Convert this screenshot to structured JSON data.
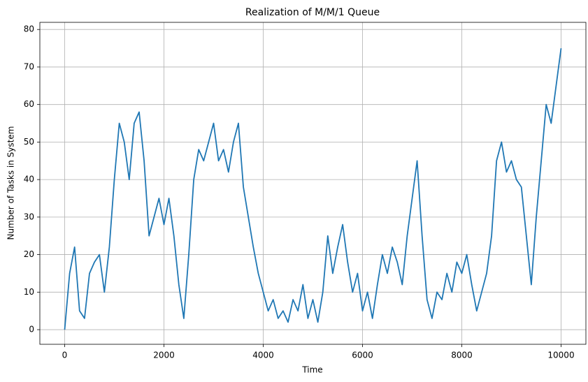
{
  "chart_data": {
    "type": "line",
    "title": "Realization of M/M/1 Queue",
    "xlabel": "Time",
    "ylabel": "Number of Tasks in System",
    "x": [
      0,
      100,
      200,
      300,
      400,
      500,
      600,
      700,
      800,
      900,
      1000,
      1100,
      1200,
      1300,
      1400,
      1500,
      1600,
      1700,
      1800,
      1900,
      2000,
      2100,
      2200,
      2300,
      2400,
      2500,
      2600,
      2700,
      2800,
      2900,
      3000,
      3100,
      3200,
      3300,
      3400,
      3500,
      3600,
      3700,
      3800,
      3900,
      4000,
      4100,
      4200,
      4300,
      4400,
      4500,
      4600,
      4700,
      4800,
      4900,
      5000,
      5100,
      5200,
      5300,
      5400,
      5500,
      5600,
      5700,
      5800,
      5900,
      6000,
      6100,
      6200,
      6300,
      6400,
      6500,
      6600,
      6700,
      6800,
      6900,
      7000,
      7100,
      7200,
      7300,
      7400,
      7500,
      7600,
      7700,
      7800,
      7900,
      8000,
      8100,
      8200,
      8300,
      8400,
      8500,
      8600,
      8700,
      8800,
      8900,
      9000,
      9100,
      9200,
      9300,
      9400,
      9500,
      9600,
      9700,
      9800,
      9900,
      10000
    ],
    "series": [
      {
        "color": "#1f77b4",
        "values": [
          0,
          15,
          22,
          5,
          3,
          15,
          18,
          20,
          10,
          22,
          40,
          55,
          50,
          40,
          55,
          58,
          45,
          25,
          30,
          35,
          28,
          35,
          25,
          12,
          3,
          20,
          40,
          48,
          45,
          50,
          55,
          45,
          48,
          42,
          50,
          55,
          38,
          30,
          22,
          15,
          10,
          5,
          8,
          3,
          5,
          2,
          8,
          5,
          12,
          3,
          8,
          2,
          10,
          25,
          15,
          22,
          28,
          18,
          10,
          15,
          5,
          10,
          3,
          12,
          20,
          15,
          22,
          18,
          12,
          25,
          35,
          45,
          25,
          8,
          3,
          10,
          8,
          15,
          10,
          18,
          15,
          20,
          12,
          5,
          10,
          15,
          25,
          45,
          50,
          42,
          45,
          40,
          38,
          25,
          12,
          30,
          45,
          60,
          55,
          65,
          75
        ]
      }
    ],
    "xlim": [
      -500,
      10500
    ],
    "ylim": [
      -3.9,
      81.9
    ],
    "xticks": [
      0,
      2000,
      4000,
      6000,
      8000,
      10000
    ],
    "yticks": [
      0,
      10,
      20,
      30,
      40,
      50,
      60,
      70,
      80
    ],
    "grid": true
  }
}
